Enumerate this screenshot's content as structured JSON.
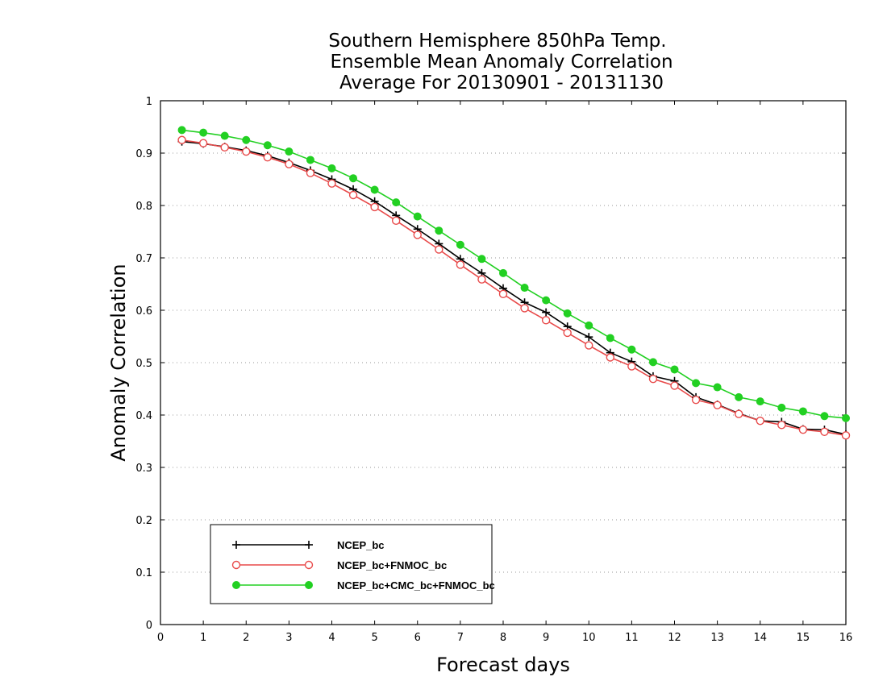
{
  "chart_data": {
    "type": "line",
    "title_lines": [
      "Southern Hemisphere 850hPa Temp.",
      "Ensemble Mean Anomaly Correlation",
      "Average For 20130901 - 20131130"
    ],
    "xlabel": "Forecast days",
    "ylabel": "Anomaly Correlation",
    "xlim": [
      0,
      16
    ],
    "ylim": [
      0,
      1
    ],
    "xticks": [
      0,
      1,
      2,
      3,
      4,
      5,
      6,
      7,
      8,
      9,
      10,
      11,
      12,
      13,
      14,
      15,
      16
    ],
    "yticks": [
      0,
      0.1,
      0.2,
      0.3,
      0.4,
      0.5,
      0.6,
      0.7,
      0.8,
      0.9,
      1
    ],
    "ytick_labels": [
      "0",
      "0.1",
      "0.2",
      "0.3",
      "0.4",
      "0.5",
      "0.6",
      "0.7",
      "0.8",
      "0.9",
      "1"
    ],
    "grid": "horizontal dotted",
    "legend_position": "bottom-left",
    "x": [
      0.5,
      1,
      1.5,
      2,
      2.5,
      3,
      3.5,
      4,
      4.5,
      5,
      5.5,
      6,
      6.5,
      7,
      7.5,
      8,
      8.5,
      9,
      9.5,
      10,
      10.5,
      11,
      11.5,
      12,
      12.5,
      13,
      13.5,
      14,
      14.5,
      15,
      15.5,
      16
    ],
    "series": [
      {
        "name": "NCEP_bc",
        "color": "#000000",
        "marker": "plus",
        "values": [
          0.922,
          0.918,
          0.912,
          0.905,
          0.895,
          0.882,
          0.867,
          0.85,
          0.831,
          0.808,
          0.781,
          0.755,
          0.727,
          0.698,
          0.671,
          0.642,
          0.615,
          0.596,
          0.569,
          0.549,
          0.519,
          0.502,
          0.474,
          0.465,
          0.434,
          0.42,
          0.403,
          0.389,
          0.387,
          0.373,
          0.372,
          0.363
        ]
      },
      {
        "name": "NCEP_bc+FNMOC_bc",
        "color": "#e84a4a",
        "marker": "open-circle",
        "values": [
          0.925,
          0.919,
          0.911,
          0.903,
          0.892,
          0.879,
          0.862,
          0.842,
          0.82,
          0.797,
          0.771,
          0.744,
          0.716,
          0.687,
          0.659,
          0.631,
          0.604,
          0.581,
          0.557,
          0.533,
          0.51,
          0.493,
          0.469,
          0.456,
          0.429,
          0.419,
          0.402,
          0.389,
          0.381,
          0.372,
          0.368,
          0.361
        ]
      },
      {
        "name": "NCEP_bc+CMC_bc+FNMOC_bc",
        "color": "#22d022",
        "marker": "filled-circle",
        "values": [
          0.944,
          0.939,
          0.933,
          0.925,
          0.915,
          0.903,
          0.887,
          0.871,
          0.852,
          0.83,
          0.806,
          0.779,
          0.752,
          0.725,
          0.698,
          0.671,
          0.643,
          0.619,
          0.594,
          0.571,
          0.547,
          0.525,
          0.501,
          0.487,
          0.461,
          0.453,
          0.434,
          0.426,
          0.414,
          0.407,
          0.398,
          0.394
        ]
      }
    ]
  }
}
